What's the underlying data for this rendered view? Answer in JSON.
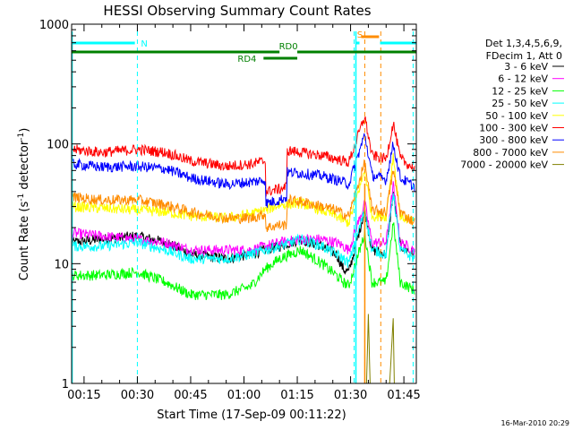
{
  "chart_data": {
    "type": "line",
    "title": "HESSI Observing Summary Count Rates",
    "xlabel": "Start Time (17-Sep-09 00:11:22)",
    "ylabel_main": "Count Rate (s",
    "ylabel_sup": "-1",
    "ylabel_mid": " detector",
    "ylabel_end": ")",
    "yscale": "log",
    "ylim": [
      1,
      1000
    ],
    "xlim_min": [
      11.5,
      108.5
    ],
    "x_ticks": [
      {
        "t": 15,
        "label": "00:15"
      },
      {
        "t": 30,
        "label": "00:30"
      },
      {
        "t": 45,
        "label": "00:45"
      },
      {
        "t": 60,
        "label": "01:00"
      },
      {
        "t": 75,
        "label": "01:15"
      },
      {
        "t": 90,
        "label": "01:30"
      },
      {
        "t": 105,
        "label": "01:45"
      }
    ],
    "y_ticks": [
      {
        "v": 1,
        "label": "1"
      },
      {
        "v": 10,
        "label": "10"
      },
      {
        "v": 100,
        "label": "100"
      },
      {
        "v": 1000,
        "label": "1000"
      }
    ],
    "legend_header": [
      "Det 1,3,4,5,6,9,",
      "FDecim 1, Att 0"
    ],
    "series": [
      {
        "name": "3 - 6 keV",
        "color": "#000000",
        "x": [
          11.5,
          20,
          30,
          38,
          45,
          55,
          62,
          66,
          70,
          76,
          82,
          86,
          88,
          89.5,
          94,
          96,
          100,
          102,
          104,
          108
        ],
        "y": [
          15,
          16,
          17,
          15,
          12,
          11,
          12,
          13,
          14,
          16,
          14,
          12,
          9,
          8.5,
          28,
          13,
          12,
          40,
          14,
          12
        ]
      },
      {
        "name": "6 - 12 keV",
        "color": "#ff00ff",
        "x": [
          11.5,
          20,
          30,
          38,
          45,
          55,
          62,
          66,
          70,
          76,
          82,
          86,
          88,
          89.5,
          94,
          96,
          100,
          102,
          104,
          108
        ],
        "y": [
          18,
          17,
          16,
          15,
          13,
          13,
          13,
          14,
          15,
          16,
          16,
          15,
          14,
          13,
          32,
          15,
          15,
          45,
          15,
          13
        ]
      },
      {
        "name": "12 - 25 keV",
        "color": "#00ff00",
        "x": [
          11.5,
          20,
          30,
          38,
          45,
          55,
          62,
          66,
          70,
          76,
          82,
          86,
          88,
          89.5,
          94,
          96,
          100,
          102,
          104,
          108
        ],
        "y": [
          8,
          8,
          8.5,
          7,
          5.5,
          5.5,
          6.5,
          9,
          11,
          13,
          10,
          8,
          7,
          6.5,
          18,
          7,
          7,
          22,
          7,
          6
        ]
      },
      {
        "name": "25 - 50 keV",
        "color": "#00ffff",
        "x": [
          11.5,
          20,
          30,
          38,
          45,
          55,
          62,
          66,
          70,
          76,
          82,
          86,
          88,
          89.5,
          94,
          96,
          100,
          102,
          104,
          108
        ],
        "y": [
          14,
          14,
          15,
          13,
          11,
          11,
          12,
          13,
          14,
          16,
          14,
          12,
          11,
          10,
          28,
          13,
          12,
          40,
          13,
          11
        ]
      },
      {
        "name": "50 - 100 keV",
        "color": "#ffff00",
        "x": [
          11.5,
          20,
          30,
          38,
          45,
          55,
          62,
          66,
          70,
          76,
          82,
          86,
          88,
          89.5,
          94,
          96,
          100,
          102,
          104,
          108
        ],
        "y": [
          30,
          29,
          28,
          27,
          25,
          24,
          26,
          28,
          31,
          32,
          28,
          25,
          23,
          22,
          60,
          25,
          25,
          80,
          25,
          22
        ]
      },
      {
        "name": "100 - 300 keV",
        "color": "#ff0000",
        "x": [
          11.5,
          20,
          30,
          38,
          45,
          55,
          62,
          66,
          66.2,
          70,
          72,
          72.2,
          76,
          82,
          86,
          88,
          89.5,
          94,
          96,
          100,
          102,
          104,
          108
        ],
        "y": [
          90,
          85,
          90,
          85,
          72,
          65,
          68,
          72,
          40,
          42,
          44,
          88,
          85,
          80,
          75,
          72,
          70,
          170,
          80,
          75,
          150,
          75,
          62
        ]
      },
      {
        "name": "300 - 800 keV",
        "color": "#0000ff",
        "x": [
          11.5,
          20,
          30,
          38,
          45,
          55,
          62,
          66,
          66.2,
          70,
          72,
          72.2,
          76,
          82,
          86,
          88,
          89.5,
          94,
          96,
          100,
          102,
          104,
          108
        ],
        "y": [
          68,
          64,
          65,
          62,
          52,
          46,
          48,
          50,
          32,
          34,
          36,
          58,
          57,
          54,
          50,
          48,
          46,
          120,
          55,
          50,
          100,
          52,
          44
        ]
      },
      {
        "name": "800 - 7000 keV",
        "color": "#ff8c00",
        "x": [
          11.5,
          20,
          30,
          38,
          45,
          55,
          62,
          66,
          66.2,
          70,
          72,
          72.2,
          76,
          82,
          86,
          88,
          89.5,
          94,
          96,
          100,
          102,
          104,
          108
        ],
        "y": [
          36,
          34,
          34,
          31,
          27,
          24,
          24,
          26,
          20,
          21,
          21,
          34,
          33,
          30,
          28,
          26,
          25,
          70,
          28,
          27,
          60,
          27,
          22
        ]
      },
      {
        "name": "7000 - 20000 keV",
        "color": "#808000",
        "x": [
          93,
          94.5,
          95,
          95.5,
          96,
          100,
          101,
          102,
          102.3,
          103
        ],
        "y": [
          1,
          1,
          3.8,
          1,
          1,
          1,
          1,
          3.5,
          1,
          1
        ]
      }
    ],
    "annotations": {
      "saa_segments": [
        {
          "label": "N",
          "x0": 11.5,
          "x1": 29.3,
          "color": "#00ffff",
          "label_x": 31
        }
      ],
      "saa_segments_right": [
        {
          "label": "S",
          "x0": 91.5,
          "x1": 92.5,
          "color": "#00ffff",
          "label_x": 91.8
        },
        {
          "label": "",
          "x0": 98.3,
          "x1": 108.5,
          "color": "#00ffff"
        }
      ],
      "orange_bar": {
        "x0": 93,
        "x1": 98,
        "color": "#ff8c00"
      },
      "rd_segments": [
        {
          "label": "RD0",
          "x0": 11.5,
          "x1": 70,
          "color": "#008000",
          "row": "upper"
        },
        {
          "label": "RD0",
          "x0": 75,
          "x1": 108.5,
          "color": "#008000",
          "row": "upper"
        },
        {
          "label": "RD4",
          "x0": 65.5,
          "x1": 75,
          "color": "#008000",
          "row": "lower"
        }
      ],
      "vlines_cyan": [
        11.7,
        30,
        91,
        107.6
      ],
      "vlines_orange_dashed": [
        94,
        98.5
      ],
      "vline_orange_solid": 94,
      "vline_cyan_solid": 91.5
    }
  },
  "footer": {
    "timestamp": "16-Mar-2010 20:29"
  }
}
